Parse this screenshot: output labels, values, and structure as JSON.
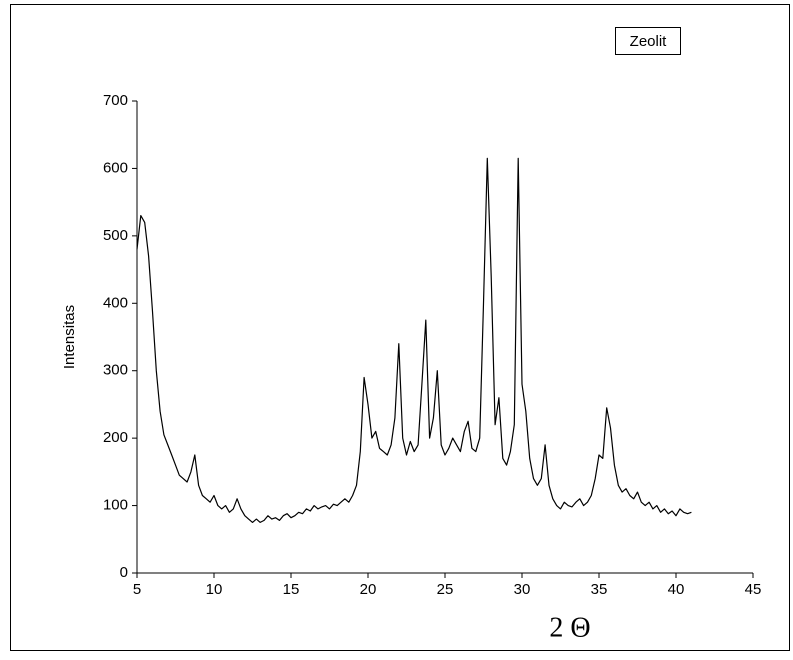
{
  "chart_data": {
    "type": "line",
    "ylabel": "Intensitas",
    "xlabel": "2 Θ",
    "legend_label": "Zeolit",
    "x": [
      5,
      5.25,
      5.5,
      5.75,
      6,
      6.25,
      6.5,
      6.75,
      7,
      7.25,
      7.5,
      7.75,
      8,
      8.25,
      8.5,
      8.75,
      9,
      9.25,
      9.5,
      9.75,
      10,
      10.25,
      10.5,
      10.75,
      11,
      11.25,
      11.5,
      11.75,
      12,
      12.25,
      12.5,
      12.75,
      13,
      13.25,
      13.5,
      13.75,
      14,
      14.25,
      14.5,
      14.75,
      15,
      15.25,
      15.5,
      15.75,
      16,
      16.25,
      16.5,
      16.75,
      17,
      17.25,
      17.5,
      17.75,
      18,
      18.25,
      18.5,
      18.75,
      19,
      19.25,
      19.5,
      19.75,
      20,
      20.25,
      20.5,
      20.75,
      21,
      21.25,
      21.5,
      21.75,
      22,
      22.25,
      22.5,
      22.75,
      23,
      23.25,
      23.5,
      23.75,
      24,
      24.25,
      24.5,
      24.75,
      25,
      25.25,
      25.5,
      25.75,
      26,
      26.25,
      26.5,
      26.75,
      27,
      27.25,
      27.5,
      27.75,
      28,
      28.25,
      28.5,
      28.75,
      29,
      29.25,
      29.5,
      29.75,
      30,
      30.25,
      30.5,
      30.75,
      31,
      31.25,
      31.5,
      31.75,
      32,
      32.25,
      32.5,
      32.75,
      33,
      33.25,
      33.5,
      33.75,
      34,
      34.25,
      34.5,
      34.75,
      35,
      35.25,
      35.5,
      35.75,
      36,
      36.25,
      36.5,
      36.75,
      37,
      37.25,
      37.5,
      37.75,
      38,
      38.25,
      38.5,
      38.75,
      39,
      39.25,
      39.5,
      39.75,
      40,
      40.25,
      40.5,
      40.75,
      41
    ],
    "values": [
      480,
      530,
      520,
      470,
      390,
      300,
      240,
      205,
      190,
      175,
      160,
      145,
      140,
      135,
      150,
      175,
      130,
      115,
      110,
      105,
      115,
      100,
      95,
      100,
      90,
      95,
      110,
      95,
      85,
      80,
      75,
      80,
      75,
      78,
      85,
      80,
      82,
      78,
      85,
      88,
      82,
      85,
      90,
      88,
      95,
      92,
      100,
      95,
      98,
      100,
      95,
      102,
      100,
      105,
      110,
      105,
      115,
      130,
      180,
      290,
      250,
      200,
      210,
      185,
      180,
      175,
      190,
      230,
      340,
      200,
      175,
      195,
      180,
      190,
      280,
      375,
      200,
      230,
      300,
      190,
      175,
      185,
      200,
      190,
      180,
      210,
      225,
      185,
      180,
      200,
      400,
      615,
      440,
      220,
      260,
      170,
      160,
      180,
      220,
      615,
      280,
      240,
      170,
      140,
      130,
      140,
      190,
      130,
      110,
      100,
      95,
      105,
      100,
      98,
      105,
      110,
      100,
      105,
      115,
      140,
      175,
      170,
      245,
      215,
      160,
      130,
      120,
      125,
      115,
      110,
      120,
      105,
      100,
      105,
      95,
      100,
      90,
      95,
      88,
      92,
      85,
      95,
      90,
      88,
      90
    ],
    "color": "#000000",
    "xlim": [
      5,
      45
    ],
    "xticks": [
      5,
      10,
      15,
      20,
      25,
      30,
      35,
      40,
      45
    ],
    "ylim": [
      0,
      700
    ],
    "yticks": [
      0,
      100,
      200,
      300,
      400,
      500,
      600,
      700
    ]
  }
}
